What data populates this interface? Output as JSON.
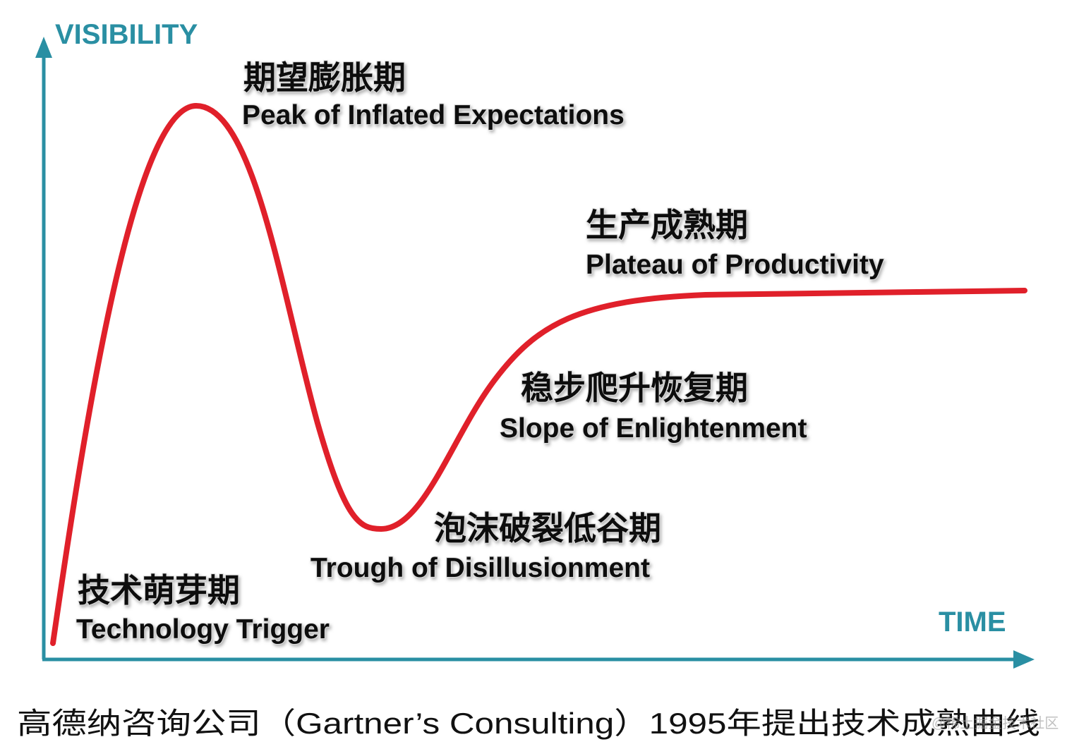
{
  "axes": {
    "y_label": "VISIBILITY",
    "x_label": "TIME"
  },
  "phases": [
    {
      "cn": "技术萌芽期",
      "en": "Technology Trigger"
    },
    {
      "cn": "期望膨胀期",
      "en": "Peak of Inflated Expectations"
    },
    {
      "cn": "泡沫破裂低谷期",
      "en": "Trough of Disillusionment"
    },
    {
      "cn": "稳步爬升恢复期",
      "en": "Slope of Enlightenment"
    },
    {
      "cn": "生产成熟期",
      "en": "Plateau of Productivity"
    }
  ],
  "caption": "高德纳咨询公司（Gartner’s Consulting）1995年提出技术成熟曲线",
  "watermark": "@稀土掘金技术社区"
}
